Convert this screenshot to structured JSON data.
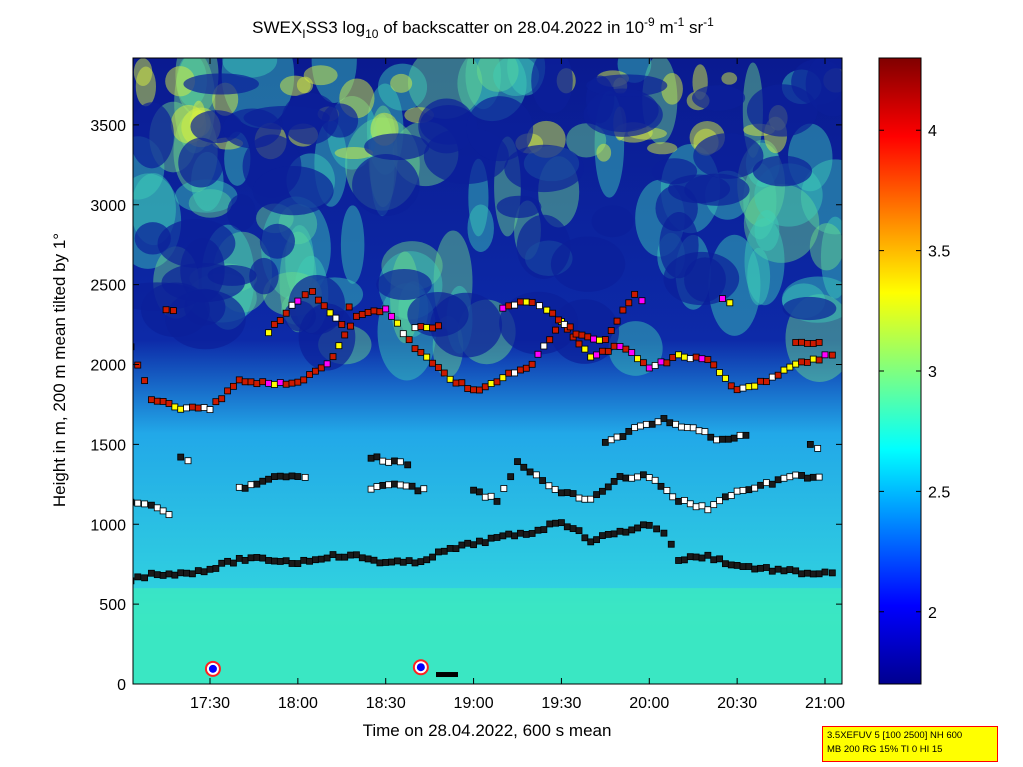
{
  "chart_data": {
    "type": "heatmap",
    "title": {
      "text1": "SWEX",
      "sub1": "I",
      "text2": "SS3 log",
      "sub2": "10",
      "text3": " of backscatter on 28.04.2022 in 10",
      "sup1": "-9",
      "text4": " m",
      "sup2": "-1",
      "text5": " sr",
      "sup3": "-1"
    },
    "xlabel": "Time on 28.04.2022, 600 s mean",
    "ylabel": "Height in m, 200 m mean tilted by 1°",
    "x_ticks": [
      "17:30",
      "18:00",
      "18:30",
      "19:00",
      "19:30",
      "20:00",
      "20:30",
      "21:00"
    ],
    "y_ticks": [
      "0",
      "500",
      "1000",
      "1500",
      "2000",
      "2500",
      "3000",
      "3500"
    ],
    "y_range": [
      0,
      4000
    ],
    "colorbar": {
      "range": [
        1.7,
        4.3
      ],
      "ticks": [
        "2",
        "2.5",
        "3",
        "3.5",
        "4"
      ],
      "colormap": "jet"
    },
    "layer_colors": {
      "ground": "#3be8c2",
      "aerosol": "#27c8ea",
      "upper": "#0c1f9a",
      "marker_outline": "#000000",
      "marker_red": "#cc1a00",
      "marker_yellow": "#ffff00",
      "marker_white": "#ffffff",
      "marker_magenta": "#ff00ff"
    },
    "layers": [
      {
        "name": "lowest",
        "points": [
          [
            "17:03",
            650
          ],
          [
            "17:10",
            690
          ],
          [
            "17:20",
            690
          ],
          [
            "17:30",
            720
          ],
          [
            "17:40",
            780
          ],
          [
            "17:50",
            780
          ],
          [
            "18:00",
            760
          ],
          [
            "18:10",
            800
          ],
          [
            "18:20",
            800
          ],
          [
            "18:30",
            760
          ],
          [
            "18:40",
            760
          ],
          [
            "18:50",
            830
          ],
          [
            "19:00",
            880
          ],
          [
            "19:10",
            920
          ],
          [
            "19:20",
            950
          ],
          [
            "19:30",
            1020
          ],
          [
            "19:40",
            900
          ],
          [
            "19:50",
            950
          ],
          [
            "20:00",
            1000
          ],
          [
            "20:05",
            950
          ],
          [
            "20:10",
            780
          ],
          [
            "20:20",
            800
          ],
          [
            "20:30",
            740
          ],
          [
            "20:40",
            720
          ],
          [
            "20:50",
            700
          ],
          [
            "21:00",
            690
          ],
          [
            "21:05",
            690
          ]
        ]
      },
      {
        "name": "second",
        "points": [
          [
            "17:03",
            1130
          ],
          [
            "17:10",
            1120
          ],
          [
            "17:18",
            1030
          ],
          [
            "17:30",
            null
          ],
          [
            "17:40",
            1220
          ],
          [
            "17:50",
            1290
          ],
          [
            "18:00",
            1300
          ],
          [
            "18:05",
            1300
          ],
          [
            "18:10",
            null
          ],
          [
            "18:25",
            1220
          ],
          [
            "18:35",
            1250
          ],
          [
            "18:45",
            1200
          ],
          [
            "18:55",
            null
          ],
          [
            "19:00",
            1210
          ],
          [
            "19:08",
            1150
          ],
          [
            "19:15",
            1380
          ],
          [
            "19:30",
            1200
          ],
          [
            "19:40",
            1150
          ],
          [
            "19:50",
            1300
          ],
          [
            "20:00",
            1300
          ],
          [
            "20:10",
            1150
          ],
          [
            "20:20",
            1100
          ],
          [
            "20:30",
            1200
          ],
          [
            "20:40",
            1250
          ],
          [
            "20:50",
            1300
          ],
          [
            "21:00",
            1300
          ]
        ]
      },
      {
        "name": "third",
        "points": [
          [
            "17:20",
            1420
          ],
          [
            "17:25",
            1360
          ],
          [
            "17:50",
            null
          ],
          [
            "18:10",
            null
          ],
          [
            "18:25",
            1420
          ],
          [
            "18:35",
            1380
          ],
          [
            "18:40",
            1350
          ],
          [
            "19:00",
            null
          ],
          [
            "19:30",
            null
          ],
          [
            "19:45",
            1500
          ],
          [
            "19:55",
            1600
          ],
          [
            "20:05",
            1650
          ],
          [
            "20:15",
            1600
          ],
          [
            "20:25",
            1520
          ],
          [
            "20:35",
            1560
          ],
          [
            "20:45",
            null
          ],
          [
            "20:55",
            1500
          ],
          [
            "21:00",
            1440
          ]
        ]
      },
      {
        "name": "upper",
        "points": [
          [
            "17:03",
            2100
          ],
          [
            "17:10",
            1790
          ],
          [
            "17:20",
            1720
          ],
          [
            "17:30",
            1730
          ],
          [
            "17:40",
            1900
          ],
          [
            "17:50",
            1880
          ],
          [
            "18:00",
            1880
          ],
          [
            "18:10",
            2000
          ],
          [
            "18:20",
            2300
          ],
          [
            "18:30",
            2350
          ],
          [
            "18:40",
            2100
          ],
          [
            "18:50",
            1940
          ],
          [
            "19:00",
            1830
          ],
          [
            "19:10",
            1920
          ],
          [
            "19:20",
            2000
          ],
          [
            "19:30",
            2260
          ],
          [
            "19:40",
            2040
          ],
          [
            "19:50",
            2120
          ],
          [
            "20:00",
            1980
          ],
          [
            "20:10",
            2050
          ],
          [
            "20:20",
            2040
          ],
          [
            "20:30",
            1830
          ],
          [
            "20:40",
            1900
          ],
          [
            "20:50",
            2000
          ],
          [
            "21:00",
            2050
          ],
          [
            "21:05",
            2090
          ]
        ]
      },
      {
        "name": "top",
        "points": [
          [
            "17:15",
            2350
          ],
          [
            "17:20",
            2330
          ],
          [
            "17:25",
            null
          ],
          [
            "17:50",
            2200
          ],
          [
            "18:00",
            2400
          ],
          [
            "18:05",
            2450
          ],
          [
            "18:15",
            2250
          ],
          [
            "18:20",
            2450
          ],
          [
            "18:25",
            null
          ],
          [
            "18:40",
            2220
          ],
          [
            "18:50",
            2250
          ],
          [
            "19:00",
            null
          ],
          [
            "19:10",
            2350
          ],
          [
            "19:20",
            2400
          ],
          [
            "19:25",
            2350
          ],
          [
            "19:35",
            2200
          ],
          [
            "19:45",
            2150
          ],
          [
            "19:55",
            2450
          ],
          [
            "20:00",
            2350
          ],
          [
            "20:10",
            null
          ],
          [
            "20:25",
            2400
          ],
          [
            "20:30",
            2380
          ],
          [
            "20:35",
            null
          ],
          [
            "20:50",
            2150
          ],
          [
            "21:00",
            2130
          ]
        ]
      }
    ],
    "special_markers": [
      {
        "time": "17:31",
        "height": 95,
        "symbol": "blue-filled circle with red-white ring"
      },
      {
        "time": "18:42",
        "height": 105,
        "symbol": "blue-filled circle with red-white ring"
      }
    ]
  },
  "footer": {
    "line1": "3.5XEFUV 5 [100 2500] NH 600",
    "line2": "MB 200 RG 15% TI 0 HI 15"
  }
}
